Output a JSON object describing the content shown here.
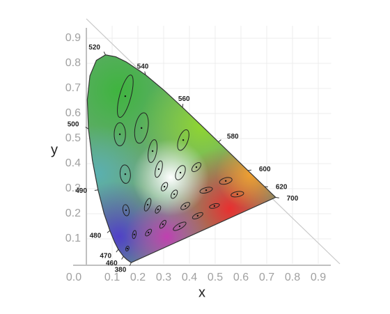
{
  "chart_data": {
    "type": "chromaticity",
    "x_label": "x",
    "y_label": "y",
    "xlim": [
      0,
      0.95
    ],
    "ylim": [
      0,
      0.95
    ],
    "xticks": [
      {
        "value": 0,
        "label": "0.0"
      },
      0.1,
      0.2,
      0.3,
      0.4,
      0.5,
      0.6,
      0.7,
      0.8,
      0.9
    ],
    "yticks": [
      0.1,
      0.2,
      0.3,
      0.4,
      0.5,
      0.6,
      0.7,
      0.8,
      0.9
    ],
    "grid": true,
    "locus": {
      "wavelengths": [
        380,
        null,
        460,
        470,
        null,
        480,
        null,
        490,
        null,
        500,
        null,
        null,
        null,
        520,
        null,
        null,
        540,
        null,
        560,
        null,
        580,
        null,
        600,
        null,
        620,
        null,
        700
      ],
      "x": [
        0.1741,
        0.1566,
        0.144,
        0.1241,
        0.1096,
        0.0913,
        0.0687,
        0.0454,
        0.0235,
        0.0082,
        0.0039,
        0.0139,
        0.0389,
        0.0743,
        0.1142,
        0.1547,
        0.2296,
        0.3016,
        0.3731,
        0.4441,
        0.5125,
        0.5752,
        0.627,
        0.6658,
        0.6915,
        0.719,
        0.7347
      ],
      "y": [
        0.005,
        0.0177,
        0.0297,
        0.0578,
        0.0868,
        0.1327,
        0.2007,
        0.295,
        0.4127,
        0.5384,
        0.6548,
        0.7502,
        0.812,
        0.8338,
        0.8262,
        0.8059,
        0.7543,
        0.6923,
        0.6245,
        0.5547,
        0.4866,
        0.4242,
        0.3725,
        0.334,
        0.3083,
        0.2809,
        0.2653
      ]
    },
    "ellipses": [
      {
        "x": 0.151,
        "y": 0.669,
        "a": 0.085,
        "b": 0.022,
        "angle": 75
      },
      {
        "x": 0.214,
        "y": 0.542,
        "a": 0.06,
        "b": 0.025,
        "angle": 80
      },
      {
        "x": 0.13,
        "y": 0.517,
        "a": 0.045,
        "b": 0.022,
        "angle": 90
      },
      {
        "x": 0.376,
        "y": 0.494,
        "a": 0.042,
        "b": 0.018,
        "angle": 70
      },
      {
        "x": 0.257,
        "y": 0.45,
        "a": 0.045,
        "b": 0.016,
        "angle": 80
      },
      {
        "x": 0.151,
        "y": 0.358,
        "a": 0.036,
        "b": 0.02,
        "angle": 95
      },
      {
        "x": 0.281,
        "y": 0.378,
        "a": 0.033,
        "b": 0.012,
        "angle": 75
      },
      {
        "x": 0.365,
        "y": 0.364,
        "a": 0.03,
        "b": 0.016,
        "angle": 65
      },
      {
        "x": 0.427,
        "y": 0.386,
        "a": 0.022,
        "b": 0.012,
        "angle": 45
      },
      {
        "x": 0.303,
        "y": 0.308,
        "a": 0.018,
        "b": 0.01,
        "angle": 60
      },
      {
        "x": 0.341,
        "y": 0.278,
        "a": 0.018,
        "b": 0.01,
        "angle": 60
      },
      {
        "x": 0.465,
        "y": 0.294,
        "a": 0.025,
        "b": 0.01,
        "angle": 15
      },
      {
        "x": 0.541,
        "y": 0.331,
        "a": 0.025,
        "b": 0.012,
        "angle": 15
      },
      {
        "x": 0.586,
        "y": 0.278,
        "a": 0.025,
        "b": 0.01,
        "angle": 10
      },
      {
        "x": 0.238,
        "y": 0.236,
        "a": 0.026,
        "b": 0.01,
        "angle": 70
      },
      {
        "x": 0.154,
        "y": 0.214,
        "a": 0.022,
        "b": 0.012,
        "angle": 100
      },
      {
        "x": 0.384,
        "y": 0.231,
        "a": 0.02,
        "b": 0.01,
        "angle": 35
      },
      {
        "x": 0.497,
        "y": 0.231,
        "a": 0.02,
        "b": 0.008,
        "angle": 15
      },
      {
        "x": 0.278,
        "y": 0.217,
        "a": 0.016,
        "b": 0.008,
        "angle": 60
      },
      {
        "x": 0.432,
        "y": 0.192,
        "a": 0.022,
        "b": 0.009,
        "angle": 25
      },
      {
        "x": 0.297,
        "y": 0.158,
        "a": 0.018,
        "b": 0.008,
        "angle": 55
      },
      {
        "x": 0.362,
        "y": 0.15,
        "a": 0.028,
        "b": 0.01,
        "angle": 30
      },
      {
        "x": 0.241,
        "y": 0.125,
        "a": 0.016,
        "b": 0.008,
        "angle": 50
      },
      {
        "x": 0.186,
        "y": 0.117,
        "a": 0.016,
        "b": 0.007,
        "angle": 80
      },
      {
        "x": 0.159,
        "y": 0.061,
        "a": 0.01,
        "b": 0.006,
        "angle": 70
      }
    ]
  }
}
